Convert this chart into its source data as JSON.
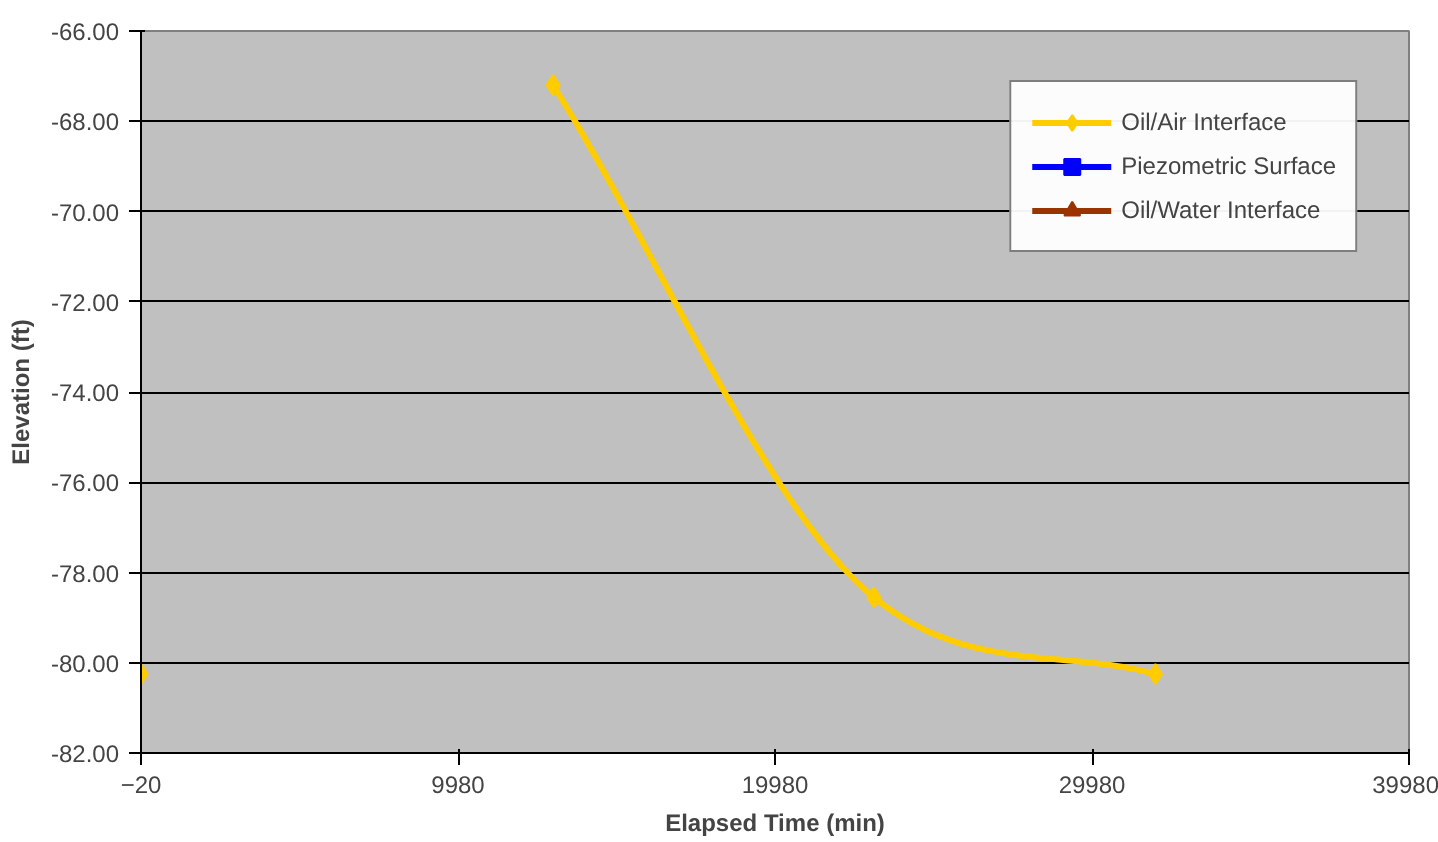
{
  "chart_data": {
    "type": "line",
    "xlabel": "Elapsed Time (min)",
    "ylabel": "Elevation (ft)",
    "x": [
      -20,
      4980,
      12980,
      23100,
      31980
    ],
    "series": [
      {
        "name": "Oil/Air Interface",
        "color": "#ffcc00",
        "marker": "diamond",
        "values": [
          -80.25,
          null,
          -67.2,
          -78.55,
          -80.25
        ]
      },
      {
        "name": "Piezometric Surface",
        "color": "#0000ff",
        "marker": "square",
        "values": [
          null,
          null,
          null,
          null,
          null
        ]
      },
      {
        "name": "Oil/Water Interface",
        "color": "#993300",
        "marker": "triangle",
        "values": [
          null,
          null,
          null,
          null,
          null
        ]
      }
    ],
    "xlim": [
      -20,
      39980
    ],
    "xticks": [
      -20,
      9980,
      19980,
      29980,
      39980
    ],
    "ylim": [
      -82,
      -66
    ],
    "yticks": [
      {
        "value": -82,
        "label": "-82.00"
      },
      {
        "value": -80,
        "label": "-80.00"
      },
      {
        "value": -78,
        "label": "-78.00"
      },
      {
        "value": -76,
        "label": "-76.00"
      },
      {
        "value": -74,
        "label": "-74.00"
      },
      {
        "value": -72,
        "label": "-72.00"
      },
      {
        "value": -70,
        "label": "-70.00"
      },
      {
        "value": -68,
        "label": "-68.00"
      },
      {
        "value": -66,
        "label": "-66.00"
      }
    ],
    "grid": "y",
    "legend": "top right"
  }
}
